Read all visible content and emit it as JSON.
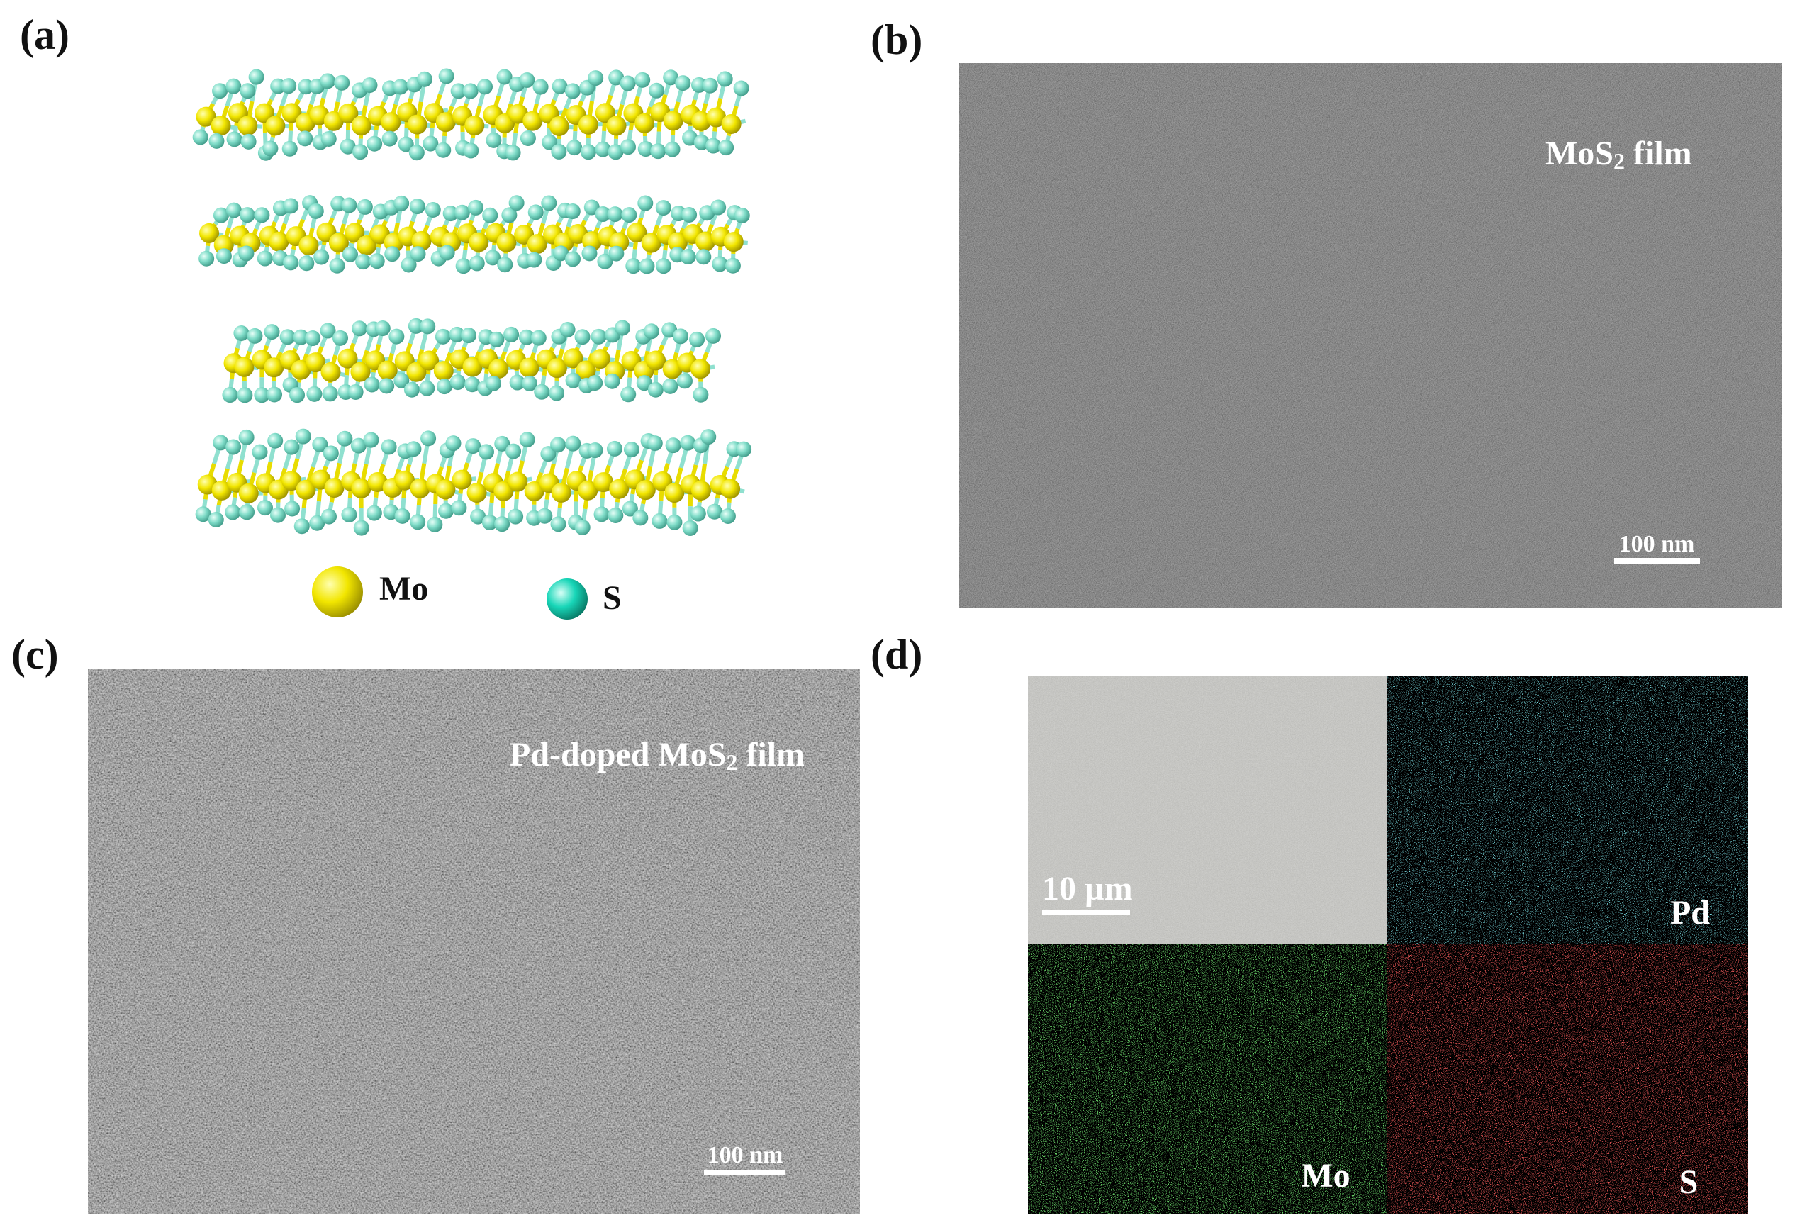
{
  "panels": {
    "a": {
      "label": "(a)",
      "legend": [
        {
          "label": "Mo"
        },
        {
          "label": "S"
        }
      ]
    },
    "b": {
      "label": "(b)",
      "caption": {
        "main": "MoS",
        "sub": "2",
        "rest": "film"
      },
      "scale_bar": "100 nm"
    },
    "c": {
      "label": "(c)",
      "caption": {
        "main": "Pd-doped MoS",
        "sub": "2",
        "rest": "film"
      },
      "scale_bar": "100 nm"
    },
    "d": {
      "label": "(d)",
      "scale_bar": "10 µm",
      "maps": [
        "Pd",
        "Mo",
        "S"
      ]
    }
  }
}
